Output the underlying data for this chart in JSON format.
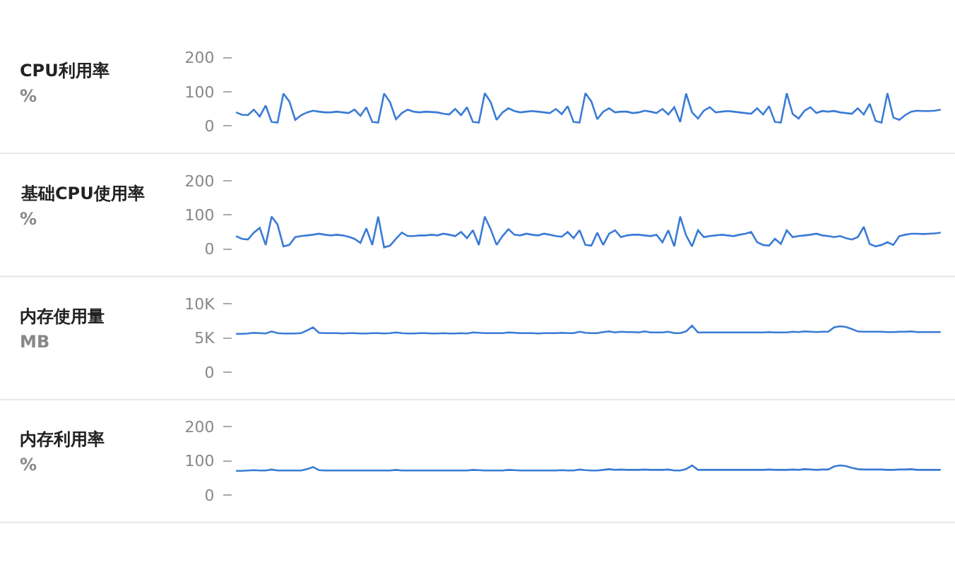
{
  "chart_data": [
    {
      "type": "line",
      "title": "CPU利用率",
      "ylabel": "%",
      "color": "#3a7bd5",
      "ylim": [
        0,
        200
      ],
      "yticks": [
        0,
        100,
        200
      ],
      "tick_labels": "y",
      "categories": [
        null,
        null,
        null,
        null,
        null,
        null,
        null,
        null,
        null,
        null,
        null,
        null,
        null,
        null,
        null,
        null,
        null,
        null,
        null,
        null,
        null,
        null,
        null,
        null,
        null,
        null,
        null,
        null,
        null,
        null,
        null,
        null,
        null,
        null,
        null,
        null,
        null,
        null,
        null,
        null,
        null,
        null,
        null,
        null,
        null,
        null,
        null,
        null,
        null,
        null,
        null,
        null,
        null,
        null,
        null,
        null,
        null,
        null,
        null,
        null,
        null,
        null,
        null,
        null,
        null,
        null,
        null,
        null,
        null,
        null,
        null,
        null,
        null,
        null,
        null,
        null,
        null,
        null,
        null,
        null,
        null,
        null,
        null,
        null,
        null,
        null,
        null,
        null,
        null,
        null,
        null,
        null,
        null,
        null,
        null,
        null,
        null,
        null,
        null,
        null,
        null,
        null,
        null,
        null,
        null,
        null,
        null,
        null,
        null,
        null,
        null,
        null,
        null,
        null,
        null,
        null,
        null,
        null,
        null,
        null
      ],
      "values": [
        40,
        33,
        32,
        48,
        28,
        60,
        12,
        10,
        95,
        72,
        18,
        32,
        40,
        45,
        42,
        40,
        40,
        42,
        40,
        38,
        48,
        30,
        55,
        12,
        10,
        95,
        70,
        20,
        38,
        48,
        42,
        40,
        42,
        41,
        40,
        36,
        34,
        50,
        32,
        55,
        12,
        10,
        96,
        70,
        18,
        40,
        52,
        44,
        40,
        42,
        44,
        42,
        40,
        38,
        50,
        35,
        58,
        12,
        10,
        96,
        72,
        20,
        42,
        52,
        40,
        42,
        42,
        38,
        40,
        45,
        42,
        38,
        50,
        34,
        55,
        12,
        95,
        40,
        22,
        45,
        55,
        40,
        42,
        44,
        42,
        40,
        38,
        36,
        52,
        34,
        58,
        12,
        10,
        96,
        35,
        22,
        45,
        55,
        38,
        44,
        42,
        44,
        40,
        38,
        36,
        52,
        34,
        65,
        15,
        10,
        96,
        25,
        18,
        32,
        42,
        45,
        44,
        44,
        45,
        48
      ]
    },
    {
      "type": "line",
      "title": "基础CPU使用率",
      "ylabel": "%",
      "color": "#3a7bd5",
      "ylim": [
        0,
        200
      ],
      "yticks": [
        0,
        100,
        200
      ],
      "tick_labels": "y",
      "categories": [
        null,
        null,
        null,
        null,
        null,
        null,
        null,
        null,
        null,
        null,
        null,
        null,
        null,
        null,
        null,
        null,
        null,
        null,
        null,
        null,
        null,
        null,
        null,
        null,
        null,
        null,
        null,
        null,
        null,
        null,
        null,
        null,
        null,
        null,
        null,
        null,
        null,
        null,
        null,
        null,
        null,
        null,
        null,
        null,
        null,
        null,
        null,
        null,
        null,
        null,
        null,
        null,
        null,
        null,
        null,
        null,
        null,
        null,
        null,
        null,
        null,
        null,
        null,
        null,
        null,
        null,
        null,
        null,
        null,
        null,
        null,
        null,
        null,
        null,
        null,
        null,
        null,
        null,
        null,
        null,
        null,
        null,
        null,
        null,
        null,
        null,
        null,
        null,
        null,
        null,
        null,
        null,
        null,
        null,
        null,
        null,
        null,
        null,
        null,
        null,
        null,
        null,
        null,
        null,
        null,
        null,
        null,
        null,
        null,
        null,
        null,
        null,
        null,
        null,
        null,
        null,
        null,
        null,
        null,
        null
      ],
      "values": [
        38,
        30,
        28,
        48,
        62,
        12,
        95,
        72,
        8,
        12,
        35,
        38,
        40,
        42,
        45,
        42,
        40,
        42,
        40,
        36,
        30,
        18,
        60,
        12,
        95,
        5,
        10,
        30,
        48,
        38,
        38,
        40,
        40,
        42,
        40,
        45,
        42,
        38,
        50,
        32,
        55,
        12,
        95,
        58,
        12,
        38,
        58,
        42,
        40,
        45,
        42,
        40,
        45,
        42,
        38,
        36,
        50,
        32,
        55,
        12,
        10,
        48,
        12,
        45,
        55,
        35,
        40,
        42,
        42,
        40,
        38,
        42,
        20,
        55,
        8,
        95,
        40,
        8,
        55,
        35,
        38,
        40,
        42,
        40,
        38,
        42,
        45,
        50,
        20,
        12,
        10,
        30,
        15,
        55,
        35,
        38,
        40,
        42,
        45,
        40,
        38,
        35,
        38,
        32,
        28,
        35,
        65,
        15,
        8,
        12,
        20,
        12,
        38,
        42,
        45,
        45,
        44,
        45,
        46,
        48
      ]
    },
    {
      "type": "line",
      "title": "内存使用量",
      "ylabel": "MB",
      "color": "#3a7bd5",
      "ylim": [
        0,
        10000
      ],
      "yticks": [
        0,
        {
          "value": 5000,
          "label": "5K"
        },
        {
          "value": 10000,
          "label": "10K"
        }
      ],
      "tick_labels": "y",
      "categories": [
        null,
        null,
        null,
        null,
        null,
        null,
        null,
        null,
        null,
        null,
        null,
        null,
        null,
        null,
        null,
        null,
        null,
        null,
        null,
        null,
        null,
        null,
        null,
        null,
        null,
        null,
        null,
        null,
        null,
        null,
        null,
        null,
        null,
        null,
        null,
        null,
        null,
        null,
        null,
        null,
        null,
        null,
        null,
        null,
        null,
        null,
        null,
        null,
        null,
        null,
        null,
        null,
        null,
        null,
        null,
        null,
        null,
        null,
        null,
        null,
        null,
        null,
        null,
        null,
        null,
        null,
        null,
        null,
        null,
        null,
        null,
        null,
        null,
        null,
        null,
        null,
        null,
        null,
        null,
        null,
        null,
        null,
        null,
        null,
        null,
        null,
        null,
        null,
        null,
        null,
        null,
        null,
        null,
        null,
        null,
        null,
        null,
        null,
        null,
        null,
        null,
        null,
        null,
        null,
        null,
        null,
        null,
        null,
        null,
        null,
        null,
        null,
        null,
        null,
        null,
        null,
        null,
        null,
        null,
        null
      ],
      "values": [
        5600,
        5600,
        5650,
        5750,
        5700,
        5650,
        5950,
        5700,
        5650,
        5650,
        5650,
        5700,
        6100,
        6550,
        5750,
        5700,
        5700,
        5700,
        5650,
        5700,
        5700,
        5650,
        5650,
        5700,
        5700,
        5650,
        5700,
        5800,
        5700,
        5650,
        5650,
        5700,
        5700,
        5650,
        5650,
        5700,
        5650,
        5650,
        5700,
        5650,
        5800,
        5750,
        5700,
        5700,
        5700,
        5700,
        5800,
        5750,
        5700,
        5700,
        5700,
        5650,
        5700,
        5700,
        5700,
        5750,
        5700,
        5700,
        5900,
        5750,
        5700,
        5700,
        5850,
        5950,
        5800,
        5900,
        5850,
        5850,
        5800,
        5950,
        5800,
        5800,
        5800,
        5900,
        5700,
        5700,
        5950,
        6800,
        5800,
        5800,
        5800,
        5800,
        5800,
        5800,
        5800,
        5800,
        5800,
        5800,
        5800,
        5800,
        5850,
        5800,
        5800,
        5800,
        5900,
        5850,
        5950,
        5900,
        5850,
        5900,
        5900,
        6550,
        6700,
        6600,
        6300,
        5950,
        5900,
        5900,
        5900,
        5900,
        5850,
        5850,
        5900,
        5900,
        5950,
        5850,
        5850,
        5850,
        5850,
        5850
      ]
    },
    {
      "type": "line",
      "title": "内存利用率",
      "ylabel": "%",
      "color": "#3a7bd5",
      "ylim": [
        0,
        200
      ],
      "yticks": [
        0,
        100,
        200
      ],
      "tick_labels": "y",
      "categories": [
        null,
        null,
        null,
        null,
        null,
        null,
        null,
        null,
        null,
        null,
        null,
        null,
        null,
        null,
        null,
        null,
        null,
        null,
        null,
        null,
        null,
        null,
        null,
        null,
        null,
        null,
        null,
        null,
        null,
        null,
        null,
        null,
        null,
        null,
        null,
        null,
        null,
        null,
        null,
        null,
        null,
        null,
        null,
        null,
        null,
        null,
        null,
        null,
        null,
        null,
        null,
        null,
        null,
        null,
        null,
        null,
        null,
        null,
        null,
        null,
        null,
        null,
        null,
        null,
        null,
        null,
        null,
        null,
        null,
        null,
        null,
        null,
        null,
        null,
        null,
        null,
        null,
        null,
        null,
        null,
        null,
        null,
        null,
        null,
        null,
        null,
        null,
        null,
        null,
        null,
        null,
        null,
        null,
        null,
        null,
        null,
        null,
        null,
        null,
        null,
        null,
        null,
        null,
        null,
        null,
        null,
        null,
        null,
        null,
        null,
        null,
        null,
        null,
        null,
        null,
        null,
        null,
        null,
        null,
        null
      ],
      "values": [
        71,
        71,
        72,
        73,
        72,
        72,
        75,
        72,
        72,
        72,
        72,
        72,
        76,
        82,
        73,
        72,
        72,
        72,
        72,
        72,
        72,
        72,
        72,
        72,
        72,
        72,
        72,
        74,
        72,
        72,
        72,
        72,
        72,
        72,
        72,
        72,
        72,
        72,
        72,
        72,
        74,
        73,
        72,
        72,
        72,
        72,
        74,
        73,
        72,
        72,
        72,
        72,
        72,
        72,
        72,
        73,
        72,
        72,
        75,
        73,
        72,
        72,
        74,
        76,
        74,
        75,
        74,
        74,
        74,
        75,
        74,
        74,
        74,
        75,
        72,
        72,
        76,
        87,
        74,
        74,
        74,
        74,
        74,
        74,
        74,
        74,
        74,
        74,
        74,
        74,
        75,
        74,
        74,
        74,
        75,
        74,
        76,
        75,
        74,
        75,
        75,
        84,
        87,
        85,
        80,
        76,
        75,
        75,
        75,
        75,
        74,
        74,
        75,
        75,
        76,
        74,
        74,
        74,
        74,
        74
      ]
    }
  ]
}
